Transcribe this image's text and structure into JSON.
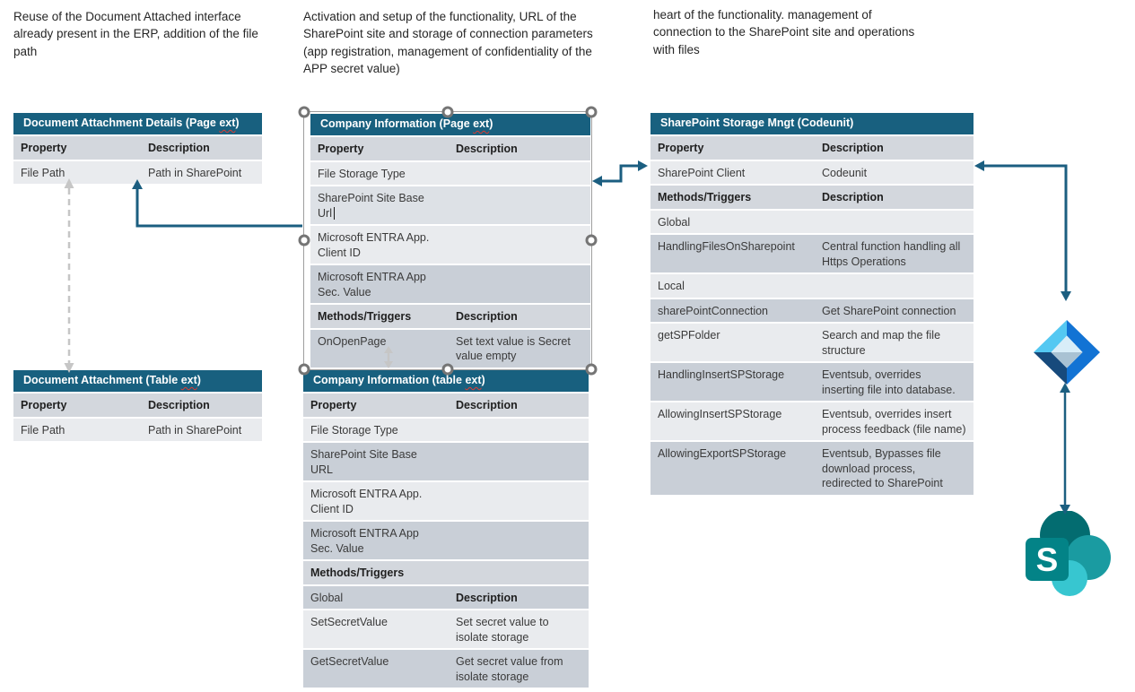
{
  "annotations": {
    "note_left": "Reuse of the Document Attached interface already present in the ERP, addition of the file path",
    "note_middle": "Activation and setup of the functionality, URL of the SharePoint site and storage of connection parameters (app registration, management of confidentiality of the APP secret value)",
    "note_right": "heart of the functionality. management of connection to the SharePoint site and operations with files"
  },
  "tables": {
    "doc_attachment_details": {
      "title_prefix": "Document Attachment Details (Page ",
      "title_flagged": "ext",
      "title_suffix": ")",
      "rows": [
        {
          "property": "Property",
          "description": "Description",
          "shade": "head",
          "bold": "both"
        },
        {
          "property": "File Path",
          "description": "Path in SharePoint",
          "shade": "light",
          "bold": "none"
        }
      ]
    },
    "company_info_page": {
      "title_prefix": "Company Information (Page ",
      "title_flagged": "ext",
      "title_suffix": ")",
      "rows": [
        {
          "property": "Property",
          "description": "Description",
          "shade": "head",
          "bold": "both"
        },
        {
          "property": "File Storage Type",
          "description": "",
          "shade": "light",
          "bold": "none"
        },
        {
          "property": "SharePoint Site Base Url",
          "description": "",
          "shade": "mid",
          "bold": "none",
          "caret": true
        },
        {
          "property": "Microsoft ENTRA App. Client ID",
          "description": "",
          "shade": "light",
          "bold": "none"
        },
        {
          "property": "Microsoft ENTRA App Sec. Value",
          "description": "",
          "shade": "dark",
          "bold": "none"
        },
        {
          "property": "Methods/Triggers",
          "description": "Description",
          "shade": "head",
          "bold": "both"
        },
        {
          "property": "OnOpenPage",
          "description": "Set text value is Secret value empty",
          "shade": "dark",
          "bold": "none"
        }
      ]
    },
    "doc_attachment_table": {
      "title_prefix": "Document Attachment (Table ",
      "title_flagged": "ext",
      "title_suffix": ")",
      "rows": [
        {
          "property": "Property",
          "description": "Description",
          "shade": "head",
          "bold": "both"
        },
        {
          "property": "File Path",
          "description": "Path in SharePoint",
          "shade": "light",
          "bold": "none"
        }
      ]
    },
    "company_info_table": {
      "title_prefix": "Company Information (table ",
      "title_flagged": "ext",
      "title_suffix": ")",
      "rows": [
        {
          "property": "Property",
          "description": "Description",
          "shade": "head",
          "bold": "both"
        },
        {
          "property": "File Storage Type",
          "description": "",
          "shade": "light",
          "bold": "none"
        },
        {
          "property": "SharePoint Site Base URL",
          "description": "",
          "shade": "dark",
          "bold": "none"
        },
        {
          "property": "Microsoft ENTRA App. Client ID",
          "description": "",
          "shade": "light",
          "bold": "none"
        },
        {
          "property": "Microsoft ENTRA App Sec. Value",
          "description": "",
          "shade": "dark",
          "bold": "none"
        },
        {
          "property": "Methods/Triggers",
          "description": "",
          "shade": "head",
          "bold": "property"
        },
        {
          "property": "Global",
          "description": "Description",
          "shade": "dark",
          "bold": "description"
        },
        {
          "property": "SetSecretValue",
          "description": "Set secret value to isolate storage",
          "shade": "light",
          "bold": "none"
        },
        {
          "property": "GetSecretValue",
          "description": "Get secret value from isolate storage",
          "shade": "dark",
          "bold": "none"
        }
      ]
    },
    "sharepoint_storage_mngt": {
      "title_prefix": "SharePoint Storage Mngt (Codeunit)",
      "title_flagged": "",
      "title_suffix": "",
      "rows": [
        {
          "property": "Property",
          "description": "Description",
          "shade": "head",
          "bold": "both"
        },
        {
          "property": "SharePoint Client",
          "description": "Codeunit",
          "shade": "light",
          "bold": "none"
        },
        {
          "property": "Methods/Triggers",
          "description": "Description",
          "shade": "head",
          "bold": "both"
        },
        {
          "property": "Global",
          "description": "",
          "shade": "light",
          "bold": "none"
        },
        {
          "property": "HandlingFilesOnSharepoint",
          "description": "Central function handling all Https Operations",
          "shade": "dark",
          "bold": "none"
        },
        {
          "property": "Local",
          "description": "",
          "shade": "light",
          "bold": "none"
        },
        {
          "property": "sharePointConnection",
          "description": "Get SharePoint connection",
          "shade": "dark",
          "bold": "none"
        },
        {
          "property": "getSPFolder",
          "description": "Search and map the file structure",
          "shade": "light",
          "bold": "none"
        },
        {
          "property": "HandlingInsertSPStorage",
          "description": "Eventsub, overrides inserting file into database.",
          "shade": "dark",
          "bold": "none"
        },
        {
          "property": "AllowingInsertSPStorage",
          "description": "Eventsub, overrides insert process feedback (file name)",
          "shade": "light",
          "bold": "none"
        },
        {
          "property": "AllowingExportSPStorage",
          "description": "Eventsub, Bypasses file download process, redirected to SharePoint",
          "shade": "dark",
          "bold": "none"
        }
      ]
    }
  },
  "icons": {
    "entra_id": "entra-id-icon",
    "sharepoint": "sharepoint-icon",
    "sharepoint_letter": "S"
  },
  "colors": {
    "table_header_bg": "#18607F",
    "row_header": "#D3D7DD",
    "row_light": "#E9EBEE",
    "row_mid": "#DDE1E6",
    "row_dark": "#C9CFD7",
    "arrow_solid": "#1B5E80",
    "arrow_dashed": "#C6C6C6",
    "spellcheck_underline": "#E03C31",
    "entra_light_blue": "#54C8F2",
    "entra_blue": "#1273D4",
    "entra_navy": "#174A7C",
    "entra_pale": "#D8EDF8",
    "entra_pale_dark": "#A9C2D3",
    "sharepoint_dark": "#036C70",
    "sharepoint_mid": "#1A9BA1",
    "sharepoint_light": "#37C6D0",
    "sharepoint_tile": "#038387"
  }
}
